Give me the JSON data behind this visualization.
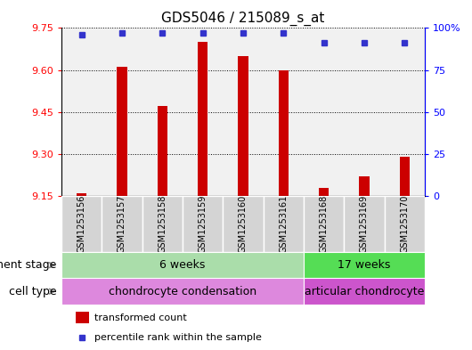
{
  "title": "GDS5046 / 215089_s_at",
  "samples": [
    "GSM1253156",
    "GSM1253157",
    "GSM1253158",
    "GSM1253159",
    "GSM1253160",
    "GSM1253161",
    "GSM1253168",
    "GSM1253169",
    "GSM1253170"
  ],
  "transformed_count": [
    9.16,
    9.61,
    9.47,
    9.7,
    9.65,
    9.6,
    9.18,
    9.22,
    9.29
  ],
  "percentile_rank": [
    96,
    97,
    97,
    97,
    97,
    97,
    91,
    91,
    91
  ],
  "ymin": 9.15,
  "ymax": 9.75,
  "yticks": [
    9.15,
    9.3,
    9.45,
    9.6,
    9.75
  ],
  "right_ytick_vals": [
    0,
    25,
    50,
    75,
    100
  ],
  "right_ytick_labels": [
    "0",
    "25",
    "50",
    "75",
    "100%"
  ],
  "bar_color": "#cc0000",
  "dot_color": "#3333cc",
  "dev_stage_groups": [
    {
      "label": "6 weeks",
      "start": 0,
      "end": 6,
      "color": "#aaddaa"
    },
    {
      "label": "17 weeks",
      "start": 6,
      "end": 9,
      "color": "#55dd55"
    }
  ],
  "cell_type_groups": [
    {
      "label": "chondrocyte condensation",
      "start": 0,
      "end": 6,
      "color": "#dd88dd"
    },
    {
      "label": "articular chondrocyte",
      "start": 6,
      "end": 9,
      "color": "#cc55cc"
    }
  ],
  "dev_stage_label": "development stage",
  "cell_type_label": "cell type",
  "legend_tc": "transformed count",
  "legend_pr": "percentile rank within the sample",
  "title_fontsize": 11,
  "tick_fontsize": 8,
  "sample_fontsize": 7,
  "label_fontsize": 9,
  "annot_fontsize": 9
}
